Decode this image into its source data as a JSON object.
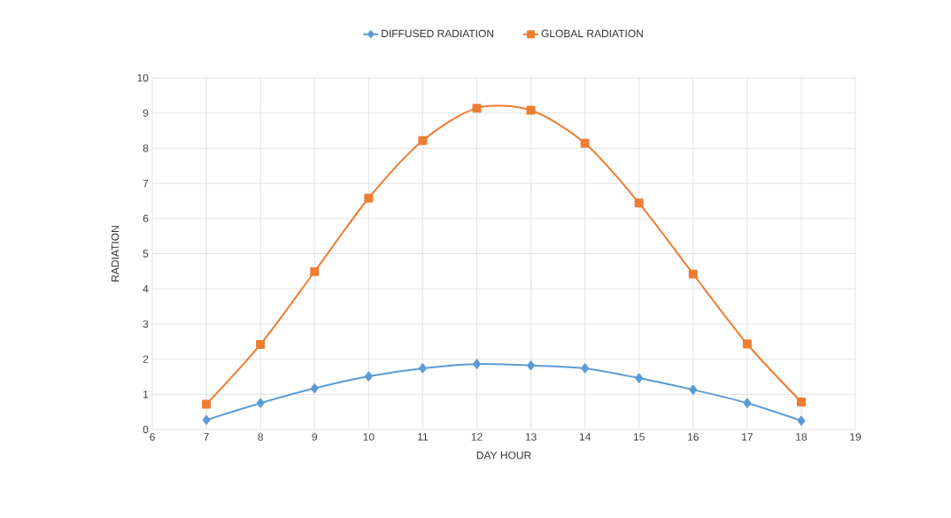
{
  "chart_data": {
    "type": "line",
    "xlabel": "DAY HOUR",
    "ylabel": "RADIATION",
    "x": [
      7,
      8,
      9,
      10,
      11,
      12,
      13,
      14,
      15,
      16,
      17,
      18
    ],
    "series": [
      {
        "name": "DIFFUSED RADIATION",
        "color": "#5b9bd5",
        "marker": "diamond",
        "values": [
          0.27,
          0.75,
          1.17,
          1.51,
          1.74,
          1.86,
          1.82,
          1.74,
          1.46,
          1.13,
          0.75,
          0.25
        ]
      },
      {
        "name": "GLOBAL RADIATION",
        "color": "#ed7d31",
        "marker": "square",
        "values": [
          0.72,
          2.42,
          4.49,
          6.58,
          8.22,
          9.14,
          9.08,
          8.14,
          6.44,
          4.42,
          2.43,
          0.78
        ]
      }
    ],
    "xlim": [
      6,
      19
    ],
    "xticks": [
      6,
      7,
      8,
      9,
      10,
      11,
      12,
      13,
      14,
      15,
      16,
      17,
      18,
      19
    ],
    "ylim": [
      0,
      10
    ],
    "yticks": [
      0,
      1,
      2,
      3,
      4,
      5,
      6,
      7,
      8,
      9,
      10
    ],
    "grid": true,
    "legend": "top",
    "line_style": "solid"
  }
}
